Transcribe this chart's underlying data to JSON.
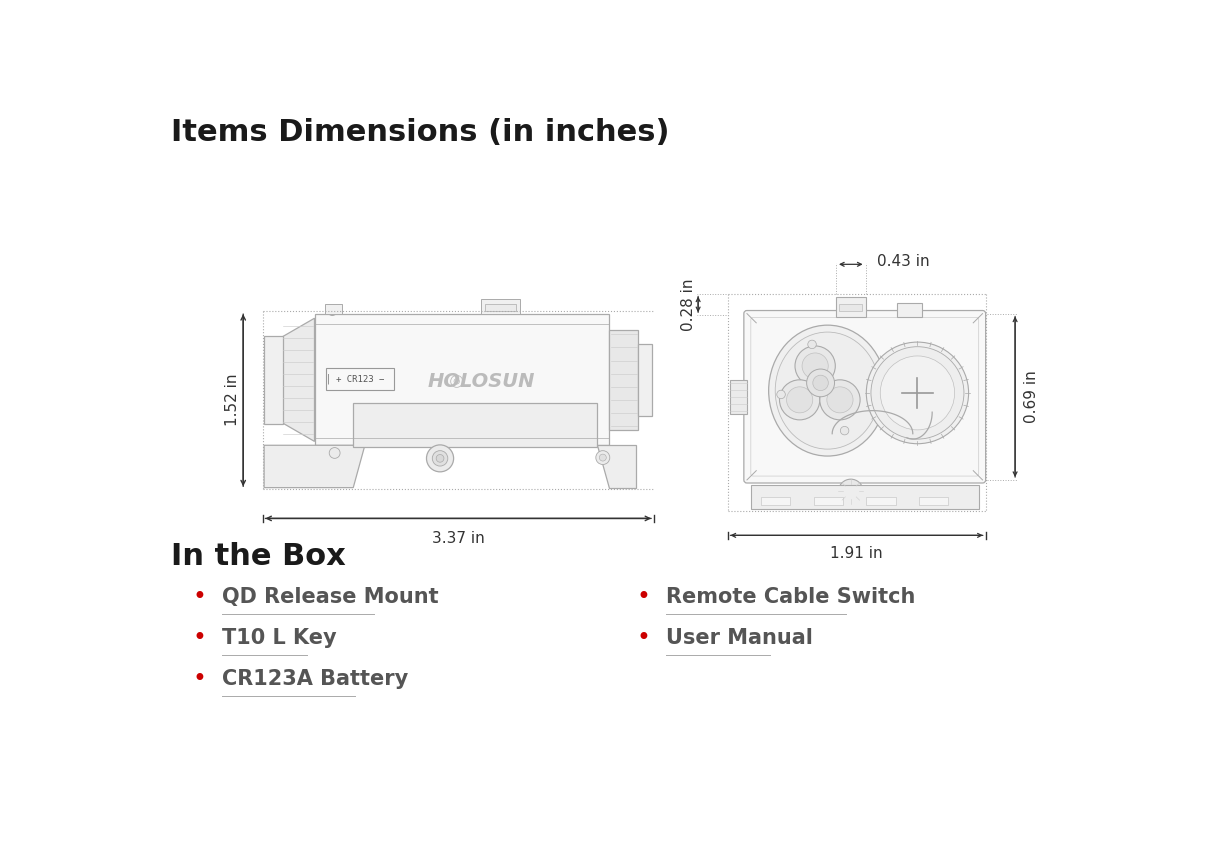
{
  "title": "Items Dimensions (in inches)",
  "title_fontsize": 22,
  "title_fontweight": "bold",
  "title_color": "#1a1a1a",
  "background_color": "#ffffff",
  "section2_title": "In the Box",
  "section2_fontsize": 22,
  "section2_fontweight": "bold",
  "box_items_left": [
    "QD Release Mount",
    "T10 L Key",
    "CR123A Battery"
  ],
  "box_items_right": [
    "Remote Cable Switch",
    "User Manual"
  ],
  "bullet_color": "#cc0000",
  "text_color": "#555555",
  "items_fontsize": 15,
  "dim_color": "#333333",
  "dim_fontsize": 11,
  "dotted_color": "#aaaaaa",
  "edge_color": "#aaaaaa",
  "face_color": "#f8f8f8",
  "dim_text_152": "1.52 in",
  "dim_text_337": "3.37 in",
  "dim_text_191": "1.91 in",
  "dim_text_043": "0.43 in",
  "dim_text_028": "0.28 in",
  "dim_text_069": "0.69 in"
}
